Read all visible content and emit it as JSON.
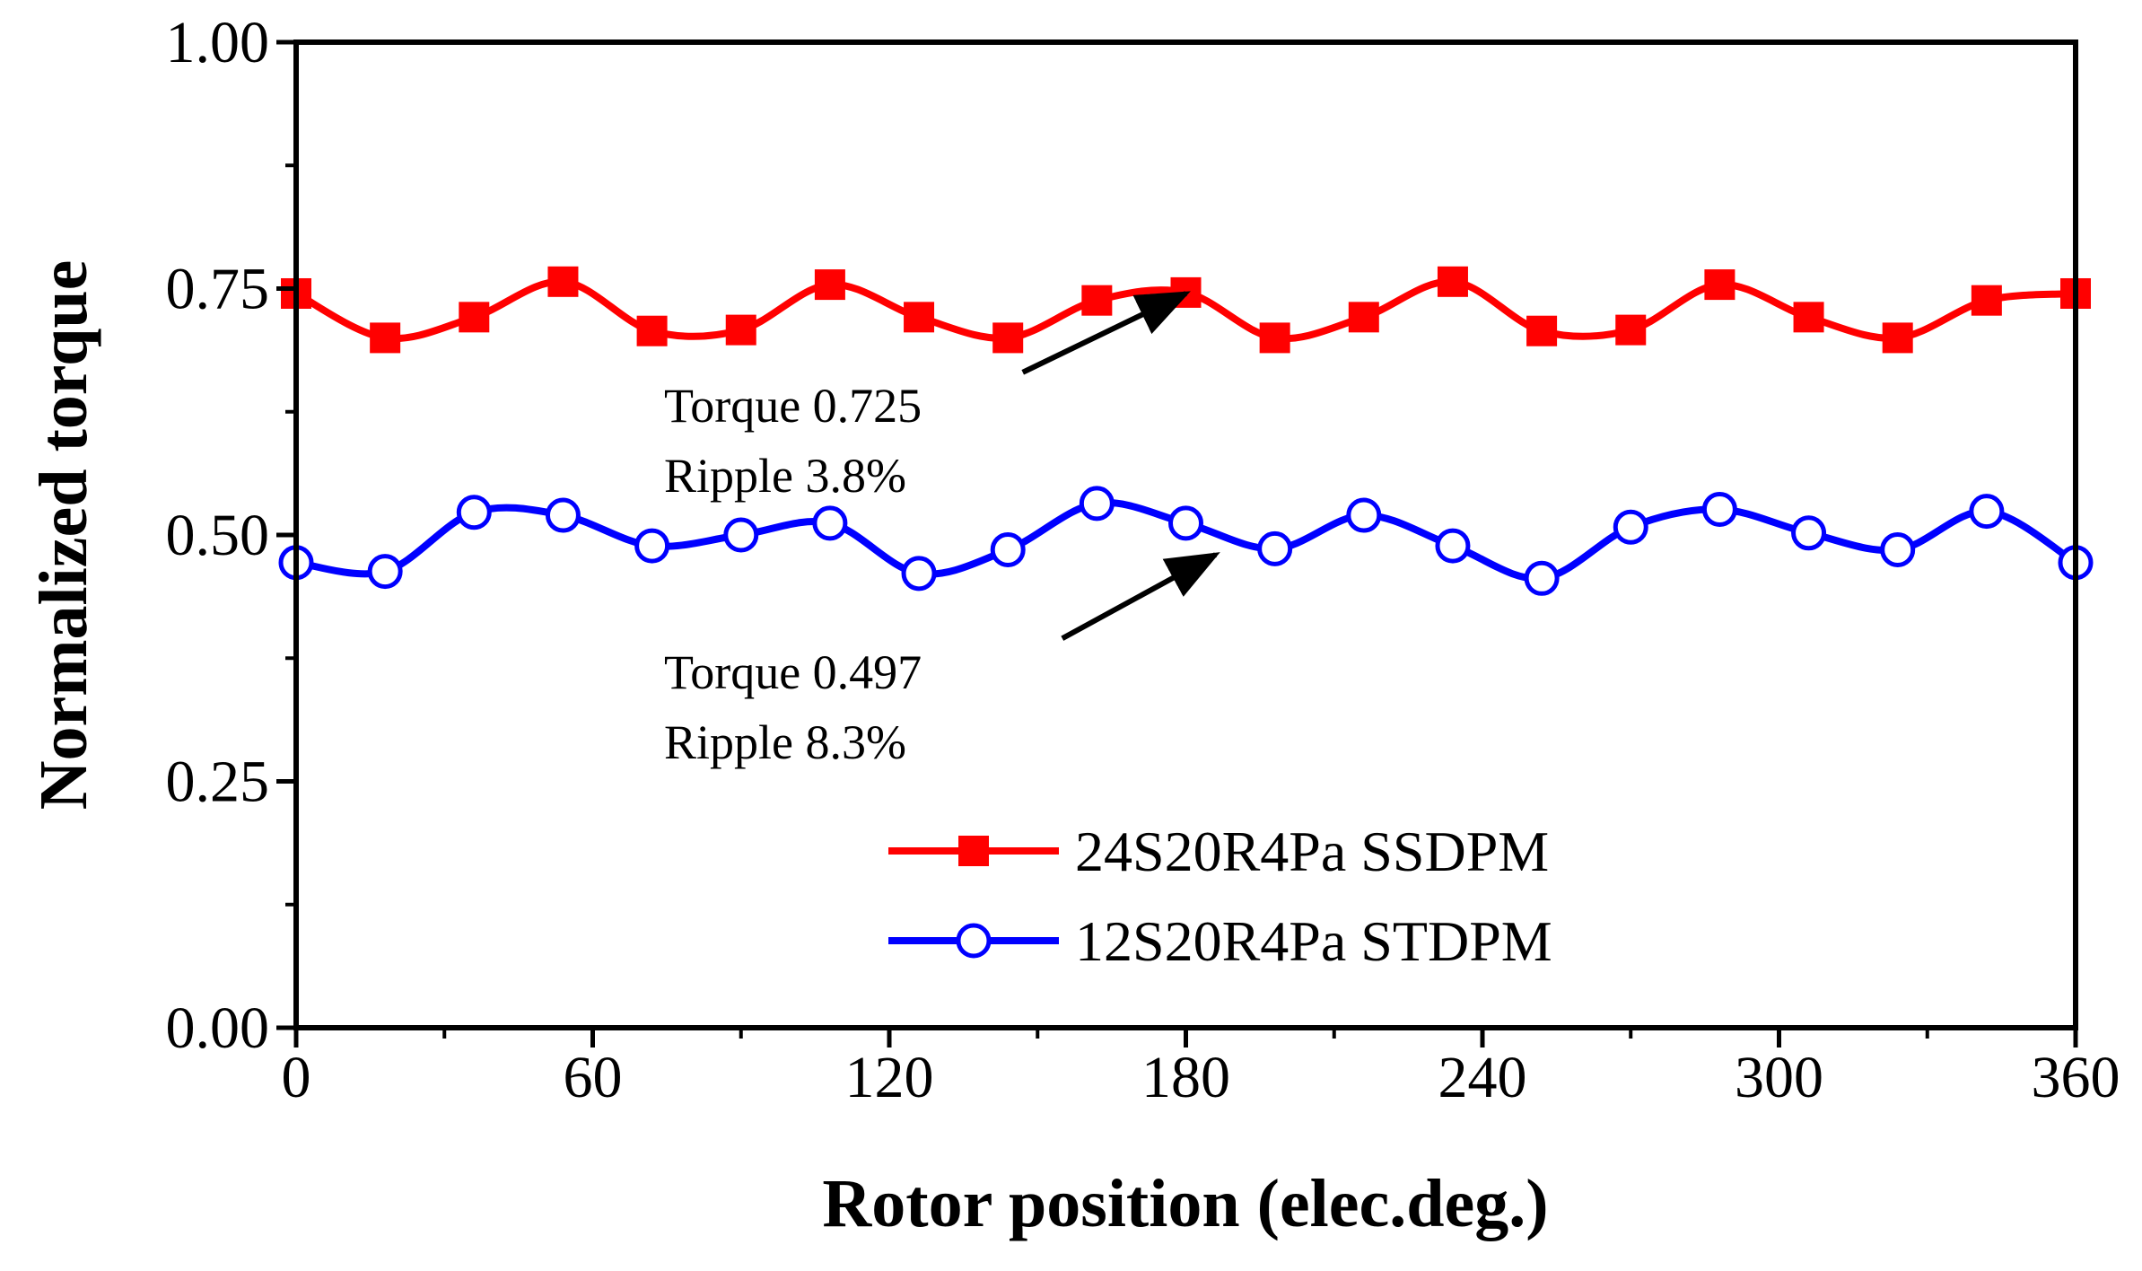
{
  "chart_data": {
    "type": "line",
    "title": "",
    "xlabel": "Rotor position (elec.deg.)",
    "ylabel": "Normalized torque",
    "xlim": [
      0,
      360
    ],
    "ylim": [
      0,
      1.0
    ],
    "xticks": [
      0,
      60,
      120,
      180,
      240,
      300,
      360
    ],
    "yticks": [
      0.0,
      0.25,
      0.5,
      0.75,
      1.0
    ],
    "xtick_labels": [
      "0",
      "60",
      "120",
      "180",
      "240",
      "300",
      "360"
    ],
    "ytick_labels": [
      "0.00",
      "0.25",
      "0.50",
      "0.75",
      "1.00"
    ],
    "grid": false,
    "legend_position": "lower-center",
    "series": [
      {
        "name": "24S20R4Pa SSDPM",
        "color": "#ff0000",
        "marker": "filled-square",
        "x": [
          0,
          18,
          36,
          54,
          72,
          90,
          108,
          126,
          144,
          162,
          180,
          198,
          216,
          234,
          252,
          270,
          288,
          306,
          324,
          342,
          360
        ],
        "y": [
          0.745,
          0.7,
          0.721,
          0.757,
          0.707,
          0.708,
          0.754,
          0.721,
          0.7,
          0.738,
          0.746,
          0.7,
          0.721,
          0.757,
          0.707,
          0.708,
          0.754,
          0.721,
          0.7,
          0.738,
          0.745
        ]
      },
      {
        "name": "12S20R4Pa STDPM",
        "color": "#0000ff",
        "marker": "open-circle",
        "x": [
          0,
          18,
          36,
          54,
          72,
          90,
          108,
          126,
          144,
          162,
          180,
          198,
          216,
          234,
          252,
          270,
          288,
          306,
          324,
          342,
          360
        ],
        "y": [
          0.472,
          0.463,
          0.523,
          0.52,
          0.489,
          0.5,
          0.512,
          0.461,
          0.485,
          0.532,
          0.512,
          0.486,
          0.52,
          0.489,
          0.456,
          0.508,
          0.526,
          0.502,
          0.485,
          0.524,
          0.472
        ]
      }
    ],
    "annotations": [
      {
        "lines": [
          "Torque 0.725",
          "Ripple 3.8%"
        ],
        "arrow_target": [
          180,
          0.745
        ],
        "arrow_from": [
          147,
          0.665
        ]
      },
      {
        "lines": [
          "Torque 0.497",
          "Ripple 8.3%"
        ],
        "arrow_target": [
          186,
          0.48
        ],
        "arrow_from": [
          155,
          0.395
        ]
      }
    ]
  }
}
